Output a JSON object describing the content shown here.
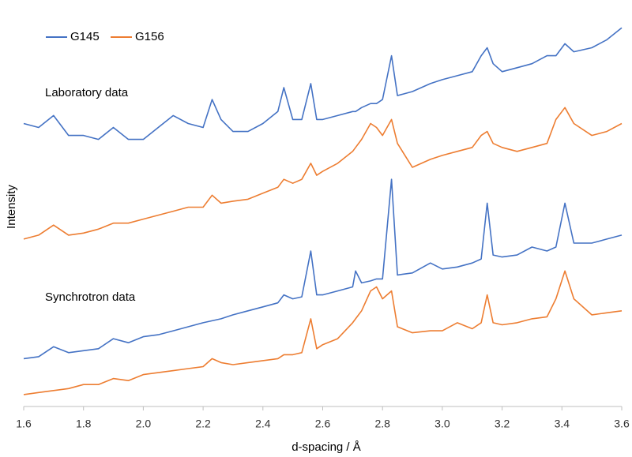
{
  "chart_data": {
    "type": "line",
    "x_label": "d-spacing / Å",
    "y_label": "Intensity",
    "annotations": [
      "Laboratory data",
      "Synchrotron data"
    ],
    "legend": "top-left",
    "x": [
      1.6,
      1.65,
      1.7,
      1.75,
      1.8,
      1.85,
      1.9,
      1.95,
      2.0,
      2.05,
      2.1,
      2.15,
      2.2,
      2.23,
      2.26,
      2.3,
      2.35,
      2.4,
      2.45,
      2.47,
      2.5,
      2.53,
      2.56,
      2.58,
      2.6,
      2.65,
      2.7,
      2.71,
      2.73,
      2.76,
      2.78,
      2.8,
      2.83,
      2.85,
      2.9,
      2.96,
      3.0,
      3.05,
      3.1,
      3.13,
      3.15,
      3.17,
      3.2,
      3.25,
      3.3,
      3.35,
      3.38,
      3.41,
      3.44,
      3.5,
      3.55,
      3.6
    ],
    "series": [
      {
        "name": "G145",
        "color": "#4472c4",
        "values": [
          71,
          70,
          73,
          68,
          68,
          67,
          70,
          67,
          67,
          70,
          73,
          71,
          70,
          77,
          72,
          69,
          69,
          71,
          74,
          80,
          72,
          72,
          81,
          72,
          72,
          73,
          74,
          74,
          75,
          76,
          76,
          77,
          88,
          78,
          79,
          81,
          82,
          83,
          84,
          88,
          90,
          86,
          84,
          85,
          86,
          88,
          88,
          91,
          89,
          90,
          92,
          95
        ]
      },
      {
        "name": "G156",
        "color": "#ed7d31",
        "values": [
          42,
          43,
          45.5,
          43,
          43.5,
          44.5,
          46,
          46,
          47,
          48,
          49,
          50,
          50,
          53,
          51,
          51.5,
          52,
          53.5,
          55,
          57,
          56,
          57,
          61,
          58,
          59,
          61,
          64,
          65,
          67,
          71,
          70,
          68,
          72,
          66,
          60,
          62,
          63,
          64,
          65,
          68,
          69,
          66,
          65,
          64,
          65,
          66,
          72,
          75,
          71,
          68,
          69,
          71
        ]
      },
      {
        "name": "G145",
        "color": "#4472c4",
        "values": [
          12,
          12.5,
          15,
          13.5,
          14,
          14.5,
          17,
          16,
          17.5,
          18,
          19,
          20,
          21,
          21.5,
          22,
          23,
          24,
          25,
          26,
          28,
          27,
          27.5,
          39,
          28,
          28,
          29,
          30,
          34,
          31,
          31.5,
          32,
          32,
          57,
          33,
          33.5,
          36,
          34.5,
          35,
          36,
          37,
          51,
          38,
          37.5,
          38,
          40,
          39,
          40,
          51,
          41,
          41,
          42,
          43
        ]
      },
      {
        "name": "G156",
        "color": "#ed7d31",
        "values": [
          3,
          3.5,
          4,
          4.5,
          5.5,
          5.5,
          7,
          6.5,
          8,
          8.5,
          9,
          9.5,
          10,
          12,
          11,
          10.5,
          11,
          11.5,
          12,
          13,
          13,
          13.5,
          22,
          14.5,
          15.5,
          17,
          21,
          22,
          24,
          29,
          30,
          27,
          29,
          20,
          18.5,
          19,
          19,
          21,
          19.5,
          21,
          28,
          21,
          20.5,
          21,
          22,
          22.5,
          27,
          34,
          27,
          23,
          23.5,
          24
        ]
      }
    ],
    "xlim": [
      1.6,
      3.6
    ],
    "xticks": [
      1.6,
      1.8,
      {
        "value": 2,
        "label": "2.0"
      },
      2.2,
      2.4,
      2.6,
      2.8,
      {
        "value": 3,
        "label": "3.0"
      },
      3.2,
      3.4,
      3.6
    ],
    "ylim": [
      0,
      100
    ]
  }
}
